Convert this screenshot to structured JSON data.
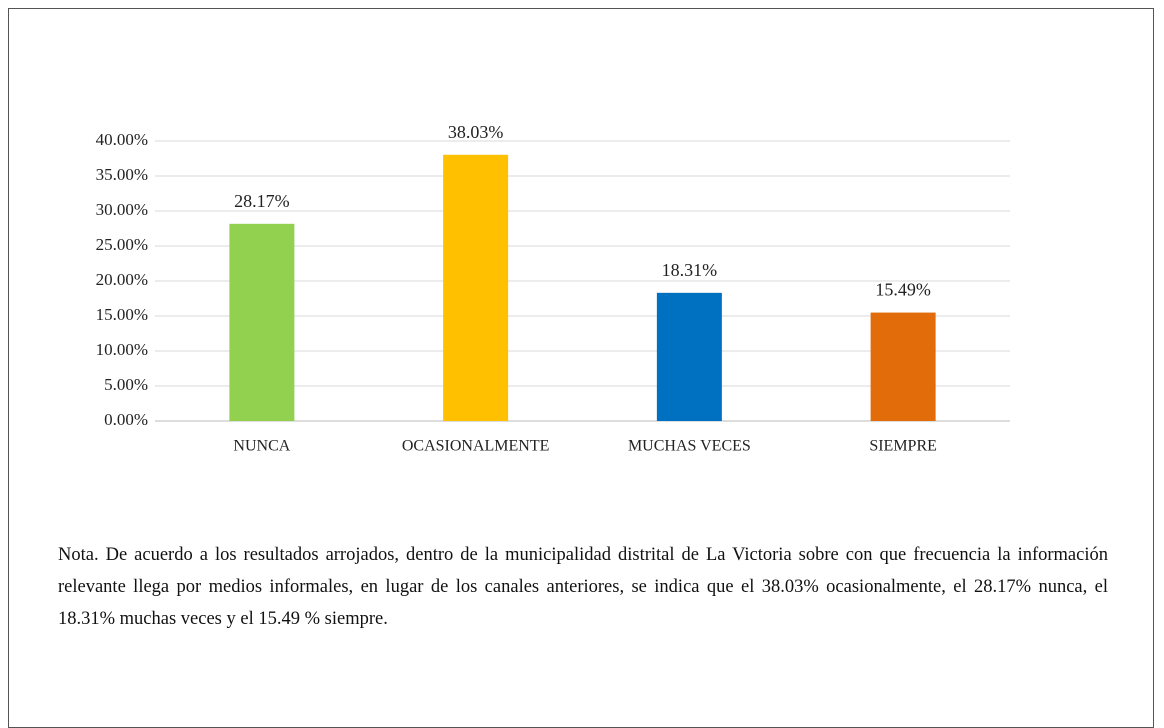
{
  "chart_data": {
    "type": "bar",
    "categories": [
      "NUNCA",
      "OCASIONALMENTE",
      "MUCHAS VECES",
      "SIEMPRE"
    ],
    "values": [
      28.17,
      38.03,
      18.31,
      15.49
    ],
    "value_labels": [
      "28.17%",
      "38.03%",
      "18.31%",
      "15.49%"
    ],
    "colors": [
      "#92d050",
      "#ffc000",
      "#0070c0",
      "#e36c0a"
    ],
    "ylim": [
      0,
      40
    ],
    "yticks": [
      {
        "value": 0,
        "label": "0.00%"
      },
      {
        "value": 5,
        "label": "5.00%"
      },
      {
        "value": 10,
        "label": "10.00%"
      },
      {
        "value": 15,
        "label": "15.00%"
      },
      {
        "value": 20,
        "label": "20.00%"
      },
      {
        "value": 25,
        "label": "25.00%"
      },
      {
        "value": 30,
        "label": "30.00%"
      },
      {
        "value": 35,
        "label": "35.00%"
      },
      {
        "value": 40,
        "label": "40.00%"
      }
    ],
    "grid": true
  },
  "note": "Nota. De acuerdo a los resultados arrojados, dentro de la municipalidad distrital de La Victoria sobre con que frecuencia la información relevante llega por medios informales, en lugar de los canales anteriores, se indica que el 38.03% ocasionalmente, el 28.17% nunca, el 18.31% muchas veces y el 15.49 % siempre."
}
